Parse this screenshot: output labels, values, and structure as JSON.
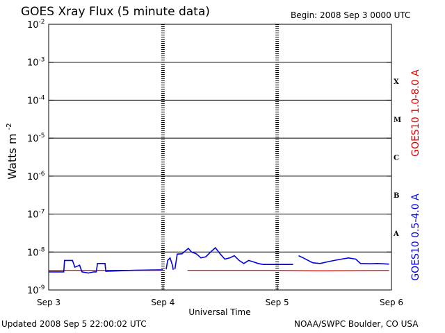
{
  "header": {
    "title": "GOES Xray Flux (5 minute data)",
    "begin": "Begin:  2008 Sep 3 0000 UTC"
  },
  "footer": {
    "updated": "Updated 2008 Sep  5 22:00:02 UTC",
    "credit": "NOAA/SWPC Boulder, CO USA"
  },
  "chart_data": {
    "type": "line",
    "title": "GOES Xray Flux (5 minute data)",
    "xlabel": "Universal Time",
    "ylabel": "Watts m",
    "ylabel_sup": "-2",
    "xlim": [
      "2008-09-03T00:00",
      "2008-09-06T00:00"
    ],
    "x_ticks": [
      "Sep 3",
      "Sep 4",
      "Sep 5",
      "Sep 6"
    ],
    "yscale": "log",
    "ylim": [
      1e-09,
      0.01
    ],
    "y_tick_base": "10",
    "y_tick_exponents": [
      "-9",
      "-8",
      "-7",
      "-6",
      "-5",
      "-4",
      "-3",
      "-2"
    ],
    "flare_classes": [
      "A",
      "B",
      "C",
      "M",
      "X"
    ],
    "grid": "horizontal",
    "series": [
      {
        "name": "GOES10 1.0-8.0 A",
        "color": "#e00000",
        "segments": [
          [
            [
              "2008-09-03T00:00",
              3.3e-09
            ],
            [
              "2008-09-03T14:00",
              3.3e-09
            ],
            [
              "2008-09-04T00:00",
              3.3e-09
            ]
          ],
          [
            [
              "2008-09-04T05:10",
              3.3e-09
            ],
            [
              "2008-09-05T00:00",
              3.3e-09
            ],
            [
              "2008-09-05T09:00",
              3.2e-09
            ],
            [
              "2008-09-05T23:30",
              3.3e-09
            ]
          ]
        ]
      },
      {
        "name": "GOES10 0.5-4.0 A",
        "color": "#0000e0",
        "segments": [
          [
            [
              "2008-09-03T00:00",
              3e-09
            ],
            [
              "2008-09-03T03:10",
              3e-09
            ],
            [
              "2008-09-03T03:20",
              6e-09
            ],
            [
              "2008-09-03T05:00",
              6e-09
            ],
            [
              "2008-09-03T05:30",
              4e-09
            ],
            [
              "2008-09-03T06:30",
              4.5e-09
            ],
            [
              "2008-09-03T07:00",
              3e-09
            ],
            [
              "2008-09-03T08:20",
              2.8e-09
            ],
            [
              "2008-09-03T09:30",
              3e-09
            ],
            [
              "2008-09-03T10:00",
              3e-09
            ],
            [
              "2008-09-03T10:15",
              5e-09
            ],
            [
              "2008-09-03T11:50",
              5e-09
            ],
            [
              "2008-09-03T12:00",
              3.1e-09
            ],
            [
              "2008-09-03T18:00",
              3.3e-09
            ],
            [
              "2008-09-04T00:00",
              3.4e-09
            ]
          ],
          [
            [
              "2008-09-04T00:40",
              3.5e-09
            ],
            [
              "2008-09-04T01:00",
              6e-09
            ],
            [
              "2008-09-04T01:30",
              7e-09
            ],
            [
              "2008-09-04T02:00",
              4.5e-09
            ],
            [
              "2008-09-04T02:10",
              3.4e-09
            ]
          ],
          [
            [
              "2008-09-04T02:30",
              3.5e-09
            ],
            [
              "2008-09-04T03:00",
              8.8e-09
            ],
            [
              "2008-09-04T04:00",
              9e-09
            ],
            [
              "2008-09-04T05:20",
              1.25e-08
            ],
            [
              "2008-09-04T06:00",
              1e-08
            ],
            [
              "2008-09-04T07:00",
              9e-09
            ],
            [
              "2008-09-04T08:00",
              7e-09
            ],
            [
              "2008-09-04T09:00",
              7.5e-09
            ],
            [
              "2008-09-04T10:00",
              1e-08
            ],
            [
              "2008-09-04T11:00",
              1.3e-08
            ],
            [
              "2008-09-04T12:00",
              9e-09
            ],
            [
              "2008-09-04T13:00",
              6.5e-09
            ],
            [
              "2008-09-04T14:00",
              7e-09
            ],
            [
              "2008-09-04T15:00",
              8e-09
            ],
            [
              "2008-09-04T16:00",
              6e-09
            ],
            [
              "2008-09-04T17:00",
              5e-09
            ],
            [
              "2008-09-04T18:00",
              6e-09
            ],
            [
              "2008-09-04T19:00",
              5.5e-09
            ],
            [
              "2008-09-04T20:00",
              5e-09
            ],
            [
              "2008-09-04T21:00",
              4.7e-09
            ],
            [
              "2008-09-04T23:59",
              4.7e-09
            ],
            [
              "2008-09-05T03:20",
              4.7e-09
            ]
          ],
          [
            [
              "2008-09-05T04:30",
              8e-09
            ],
            [
              "2008-09-05T05:30",
              7e-09
            ],
            [
              "2008-09-05T06:30",
              6e-09
            ],
            [
              "2008-09-05T07:30",
              5.2e-09
            ],
            [
              "2008-09-05T09:00",
              5e-09
            ],
            [
              "2008-09-05T10:30",
              5.5e-09
            ],
            [
              "2008-09-05T12:00",
              6e-09
            ],
            [
              "2008-09-05T13:30",
              6.5e-09
            ],
            [
              "2008-09-05T15:00",
              7e-09
            ],
            [
              "2008-09-05T16:30",
              6.5e-09
            ],
            [
              "2008-09-05T17:30",
              5e-09
            ],
            [
              "2008-09-05T19:30",
              4.9e-09
            ],
            [
              "2008-09-05T21:00",
              5e-09
            ],
            [
              "2008-09-05T23:30",
              4.8e-09
            ]
          ]
        ]
      }
    ]
  }
}
